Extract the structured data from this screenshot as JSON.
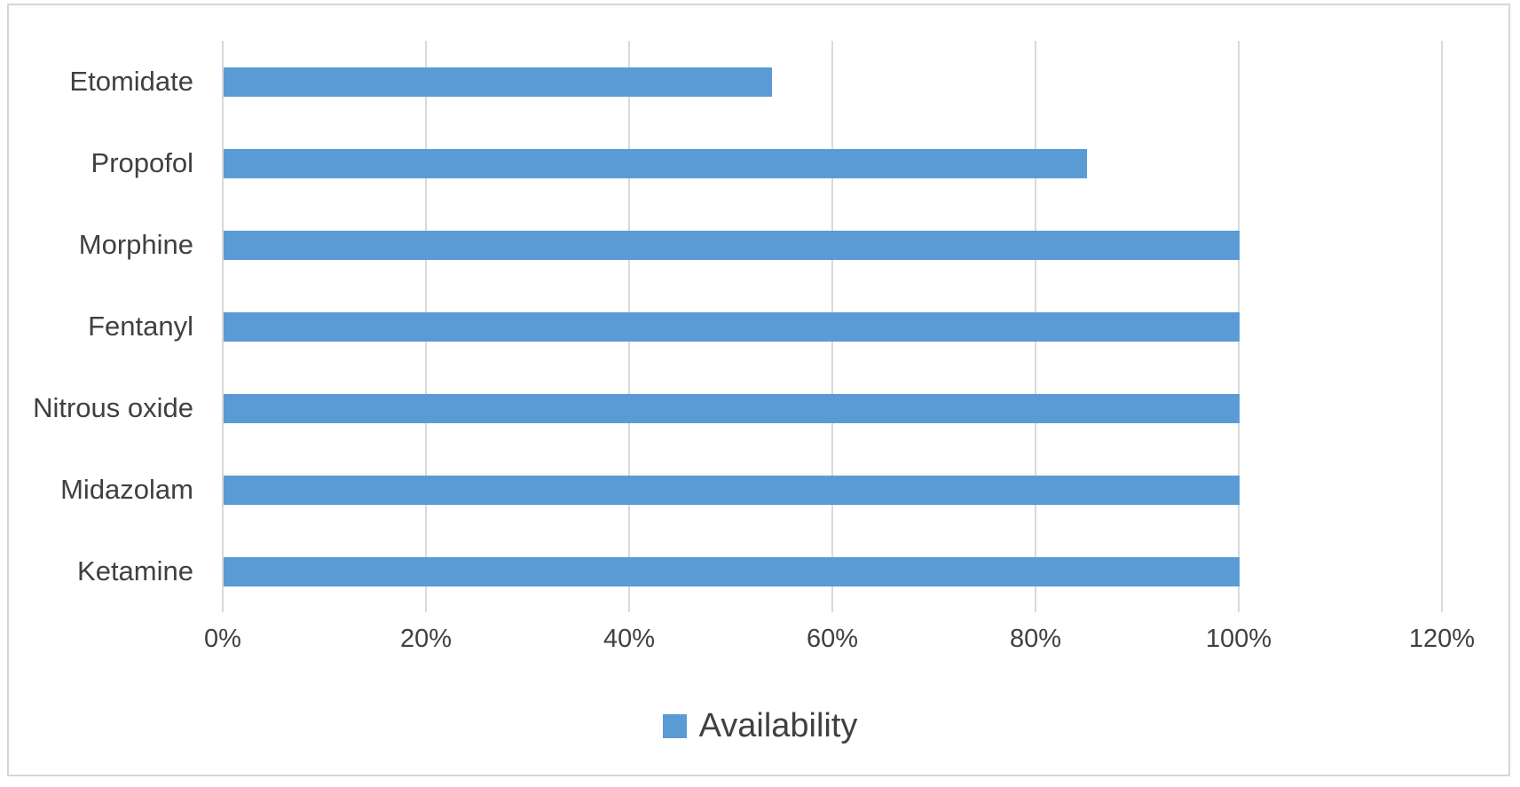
{
  "chart_data": {
    "type": "bar",
    "orientation": "horizontal",
    "title": "",
    "categories": [
      "Etomidate",
      "Propofol",
      "Morphine",
      "Fentanyl",
      "Nitrous oxide",
      "Midazolam",
      "Ketamine"
    ],
    "series": [
      {
        "name": "Availability",
        "values": [
          54,
          85,
          100,
          100,
          100,
          100,
          100
        ]
      }
    ],
    "value_axis": {
      "min": 0,
      "max": 120,
      "step": 20,
      "tick_labels": [
        "0%",
        "20%",
        "40%",
        "60%",
        "80%",
        "100%",
        "120%"
      ]
    },
    "grid": true,
    "legend": {
      "position": "bottom",
      "entries": [
        "Availability"
      ]
    },
    "colors": {
      "bar": "#5b9bd5",
      "gridline": "#d9d9d9",
      "border": "#d6d6d6",
      "text": "#404040",
      "background": "#ffffff"
    }
  }
}
